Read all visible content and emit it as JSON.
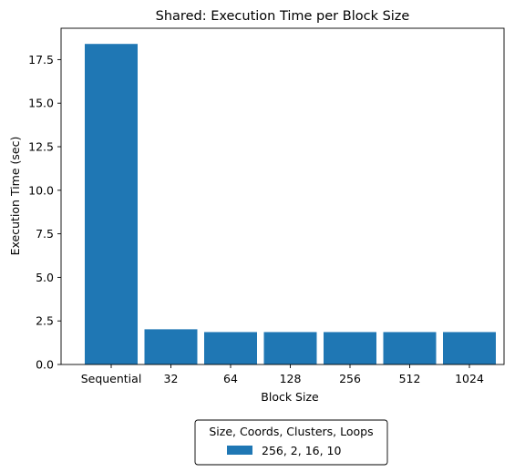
{
  "chart_data": {
    "type": "bar",
    "title": "Shared: Execution Time per Block Size",
    "xlabel": "Block Size",
    "ylabel": "Execution Time (sec)",
    "categories": [
      "Sequential",
      "32",
      "64",
      "128",
      "256",
      "512",
      "1024"
    ],
    "series": [
      {
        "name": "256, 2, 16, 10",
        "values": [
          18.4,
          2.02,
          1.86,
          1.86,
          1.86,
          1.86,
          1.86
        ],
        "color": "#1f77b4"
      }
    ],
    "ylim": [
      0,
      19.3
    ],
    "yticks": [
      0.0,
      2.5,
      5.0,
      7.5,
      10.0,
      12.5,
      15.0,
      17.5
    ],
    "ytick_labels": [
      "0.0",
      "2.5",
      "5.0",
      "7.5",
      "10.0",
      "12.5",
      "15.0",
      "17.5"
    ],
    "grid": false,
    "legend": {
      "title": "Size, Coords, Clusters, Loops",
      "placement": "bottom-center, below axes"
    }
  }
}
